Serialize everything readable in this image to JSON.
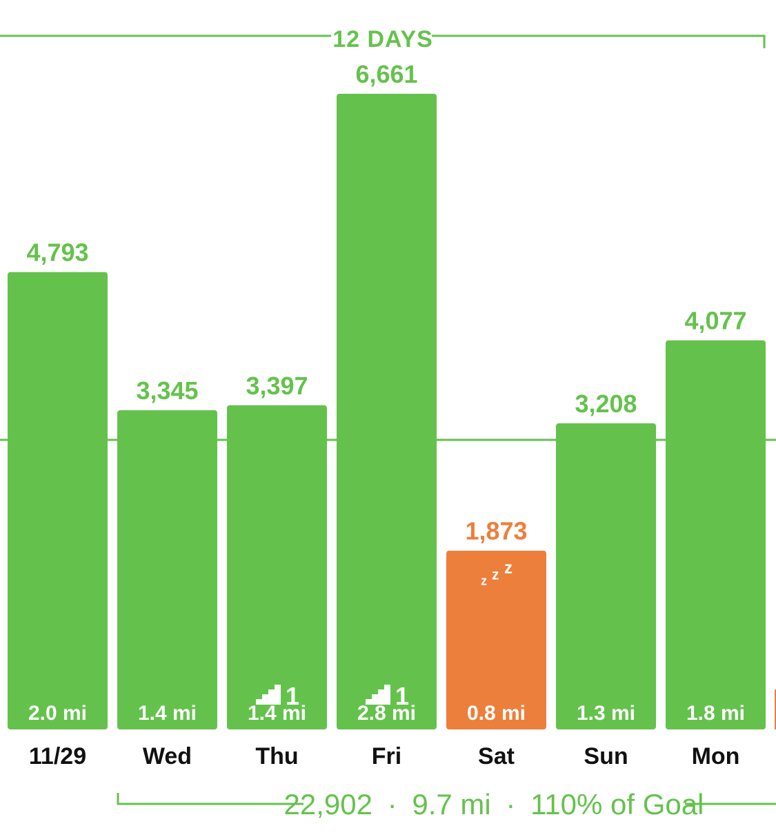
{
  "colors": {
    "green": "#64c24c",
    "orange": "#ec7f3b",
    "text_dark": "#111111",
    "white": "#ffffff"
  },
  "header": {
    "period_label": "12 DAYS"
  },
  "summary": {
    "steps": "22,902",
    "distance": "9.7 mi",
    "goal": "110% of Goal",
    "separator": "·"
  },
  "chart_data": {
    "type": "bar",
    "categories": [
      "11/29",
      "Wed",
      "Thu",
      "Fri",
      "Sat",
      "Sun",
      "Mon"
    ],
    "values": [
      4793,
      3345,
      3397,
      6661,
      1873,
      3208,
      4077
    ],
    "value_labels": [
      "4,793",
      "3,345",
      "3,397",
      "6,661",
      "1,873",
      "3,208",
      "4,077"
    ],
    "distances": [
      "2.0 mi",
      "1.4 mi",
      "1.4 mi",
      "2.8 mi",
      "0.8 mi",
      "1.3 mi",
      "1.8 mi"
    ],
    "status": [
      "goal",
      "goal",
      "goal",
      "goal",
      "below-goal",
      "goal",
      "goal"
    ],
    "floors": [
      null,
      null,
      "1",
      "1",
      null,
      null,
      null
    ],
    "sleep_icon": [
      false,
      false,
      false,
      false,
      true,
      false,
      false
    ],
    "goal_line": 3000,
    "ylim": [
      0,
      7000
    ]
  }
}
